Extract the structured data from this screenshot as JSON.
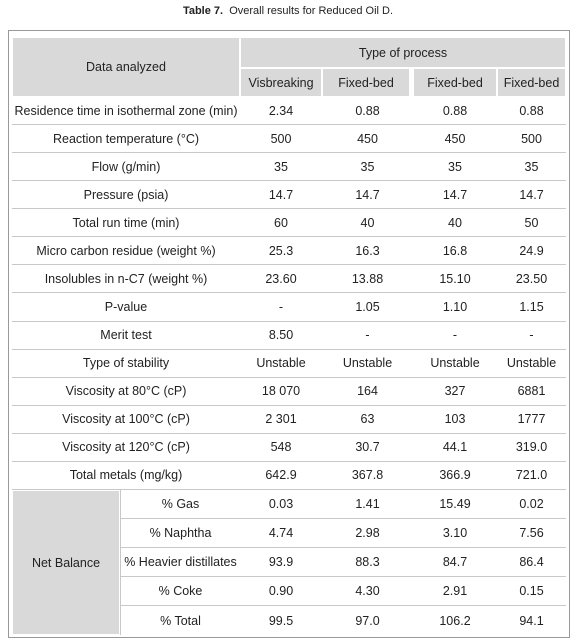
{
  "caption": {
    "label": "Table 7.",
    "text": "Overall results for Reduced Oil D."
  },
  "table": {
    "header": {
      "group": "Data analyzed",
      "process": "Type of process",
      "columns": [
        "Visbreaking",
        "Fixed-bed",
        "Fixed-bed",
        "Fixed-bed"
      ]
    },
    "rows": [
      [
        "Residence time in isothermal zone (min)",
        "2.34",
        "0.88",
        "0.88",
        "0.88"
      ],
      [
        "Reaction temperature (°C)",
        "500",
        "450",
        "450",
        "500"
      ],
      [
        "Flow (g/min)",
        "35",
        "35",
        "35",
        "35"
      ],
      [
        "Pressure (psia)",
        "14.7",
        "14.7",
        "14.7",
        "14.7"
      ],
      [
        "Total run time (min)",
        "60",
        "40",
        "40",
        "50"
      ],
      [
        "Micro carbon residue (weight %)",
        "25.3",
        "16.3",
        "16.8",
        "24.9"
      ],
      [
        "Insolubles in n-C7 (weight %)",
        "23.60",
        "13.88",
        "15.10",
        "23.50"
      ],
      [
        "P-value",
        "-",
        "1.05",
        "1.10",
        "1.15"
      ],
      [
        "Merit test",
        "8.50",
        "-",
        "-",
        "-"
      ],
      [
        "Type of stability",
        "Unstable",
        "Unstable",
        "Unstable",
        "Unstable"
      ],
      [
        "Viscosity at 80°C (cP)",
        "18 070",
        "164",
        "327",
        "6881"
      ],
      [
        "Viscosity at 100°C (cP)",
        "2 301",
        "63",
        "103",
        "1777"
      ],
      [
        "Viscosity at 120°C (cP)",
        "548",
        "30.7",
        "44.1",
        "319.0"
      ],
      [
        "Total metals (mg/kg)",
        "642.9",
        "367.8",
        "366.9",
        "721.0"
      ]
    ],
    "net_balance": {
      "label": "Net Balance",
      "rows": [
        [
          "% Gas",
          "0.03",
          "1.41",
          "15.49",
          "0.02"
        ],
        [
          "% Naphtha",
          "4.74",
          "2.98",
          "3.10",
          "7.56"
        ],
        [
          "% Heavier distillates",
          "93.9",
          "88.3",
          "84.7",
          "86.4"
        ],
        [
          "% Coke",
          "0.90",
          "4.30",
          "2.91",
          "0.15"
        ],
        [
          "% Total",
          "99.5",
          "97.0",
          "106.2",
          "94.1"
        ]
      ]
    }
  }
}
